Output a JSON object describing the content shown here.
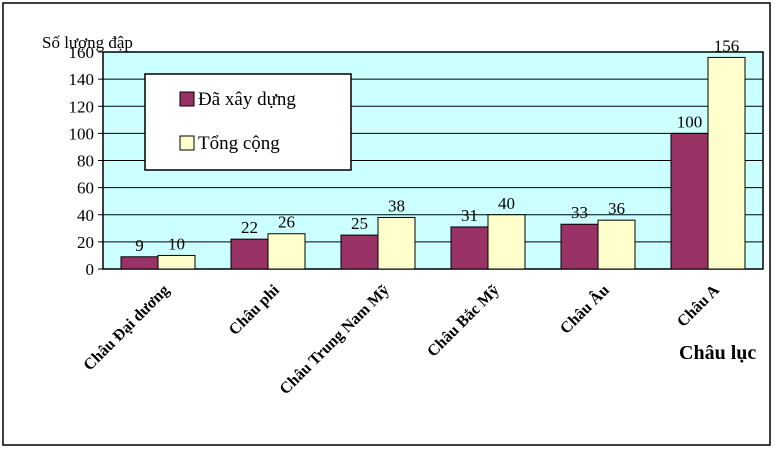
{
  "chart_data": {
    "type": "bar",
    "ylabel": "Số lượng đập",
    "xlabel": "Châu lục",
    "ylim": [
      0,
      160
    ],
    "yticks": [
      0,
      20,
      40,
      60,
      80,
      100,
      120,
      140,
      160
    ],
    "grid": true,
    "legend": "top-left",
    "categories": [
      "Châu Đại dương",
      "Châu phi",
      "Châu Trung Nam Mỹ",
      "Châu Bắc Mỹ",
      "Châu Âu",
      "Châu A"
    ],
    "series": [
      {
        "name": "Đã xây dựng",
        "values": [
          9,
          22,
          25,
          31,
          33,
          100
        ],
        "color": "#993366"
      },
      {
        "name": "Tổng cộng",
        "values": [
          10,
          26,
          38,
          40,
          36,
          156
        ],
        "color": "#ffffcc"
      }
    ],
    "colors": {
      "plot_background": "#ccffff",
      "frame": "#000000"
    }
  }
}
